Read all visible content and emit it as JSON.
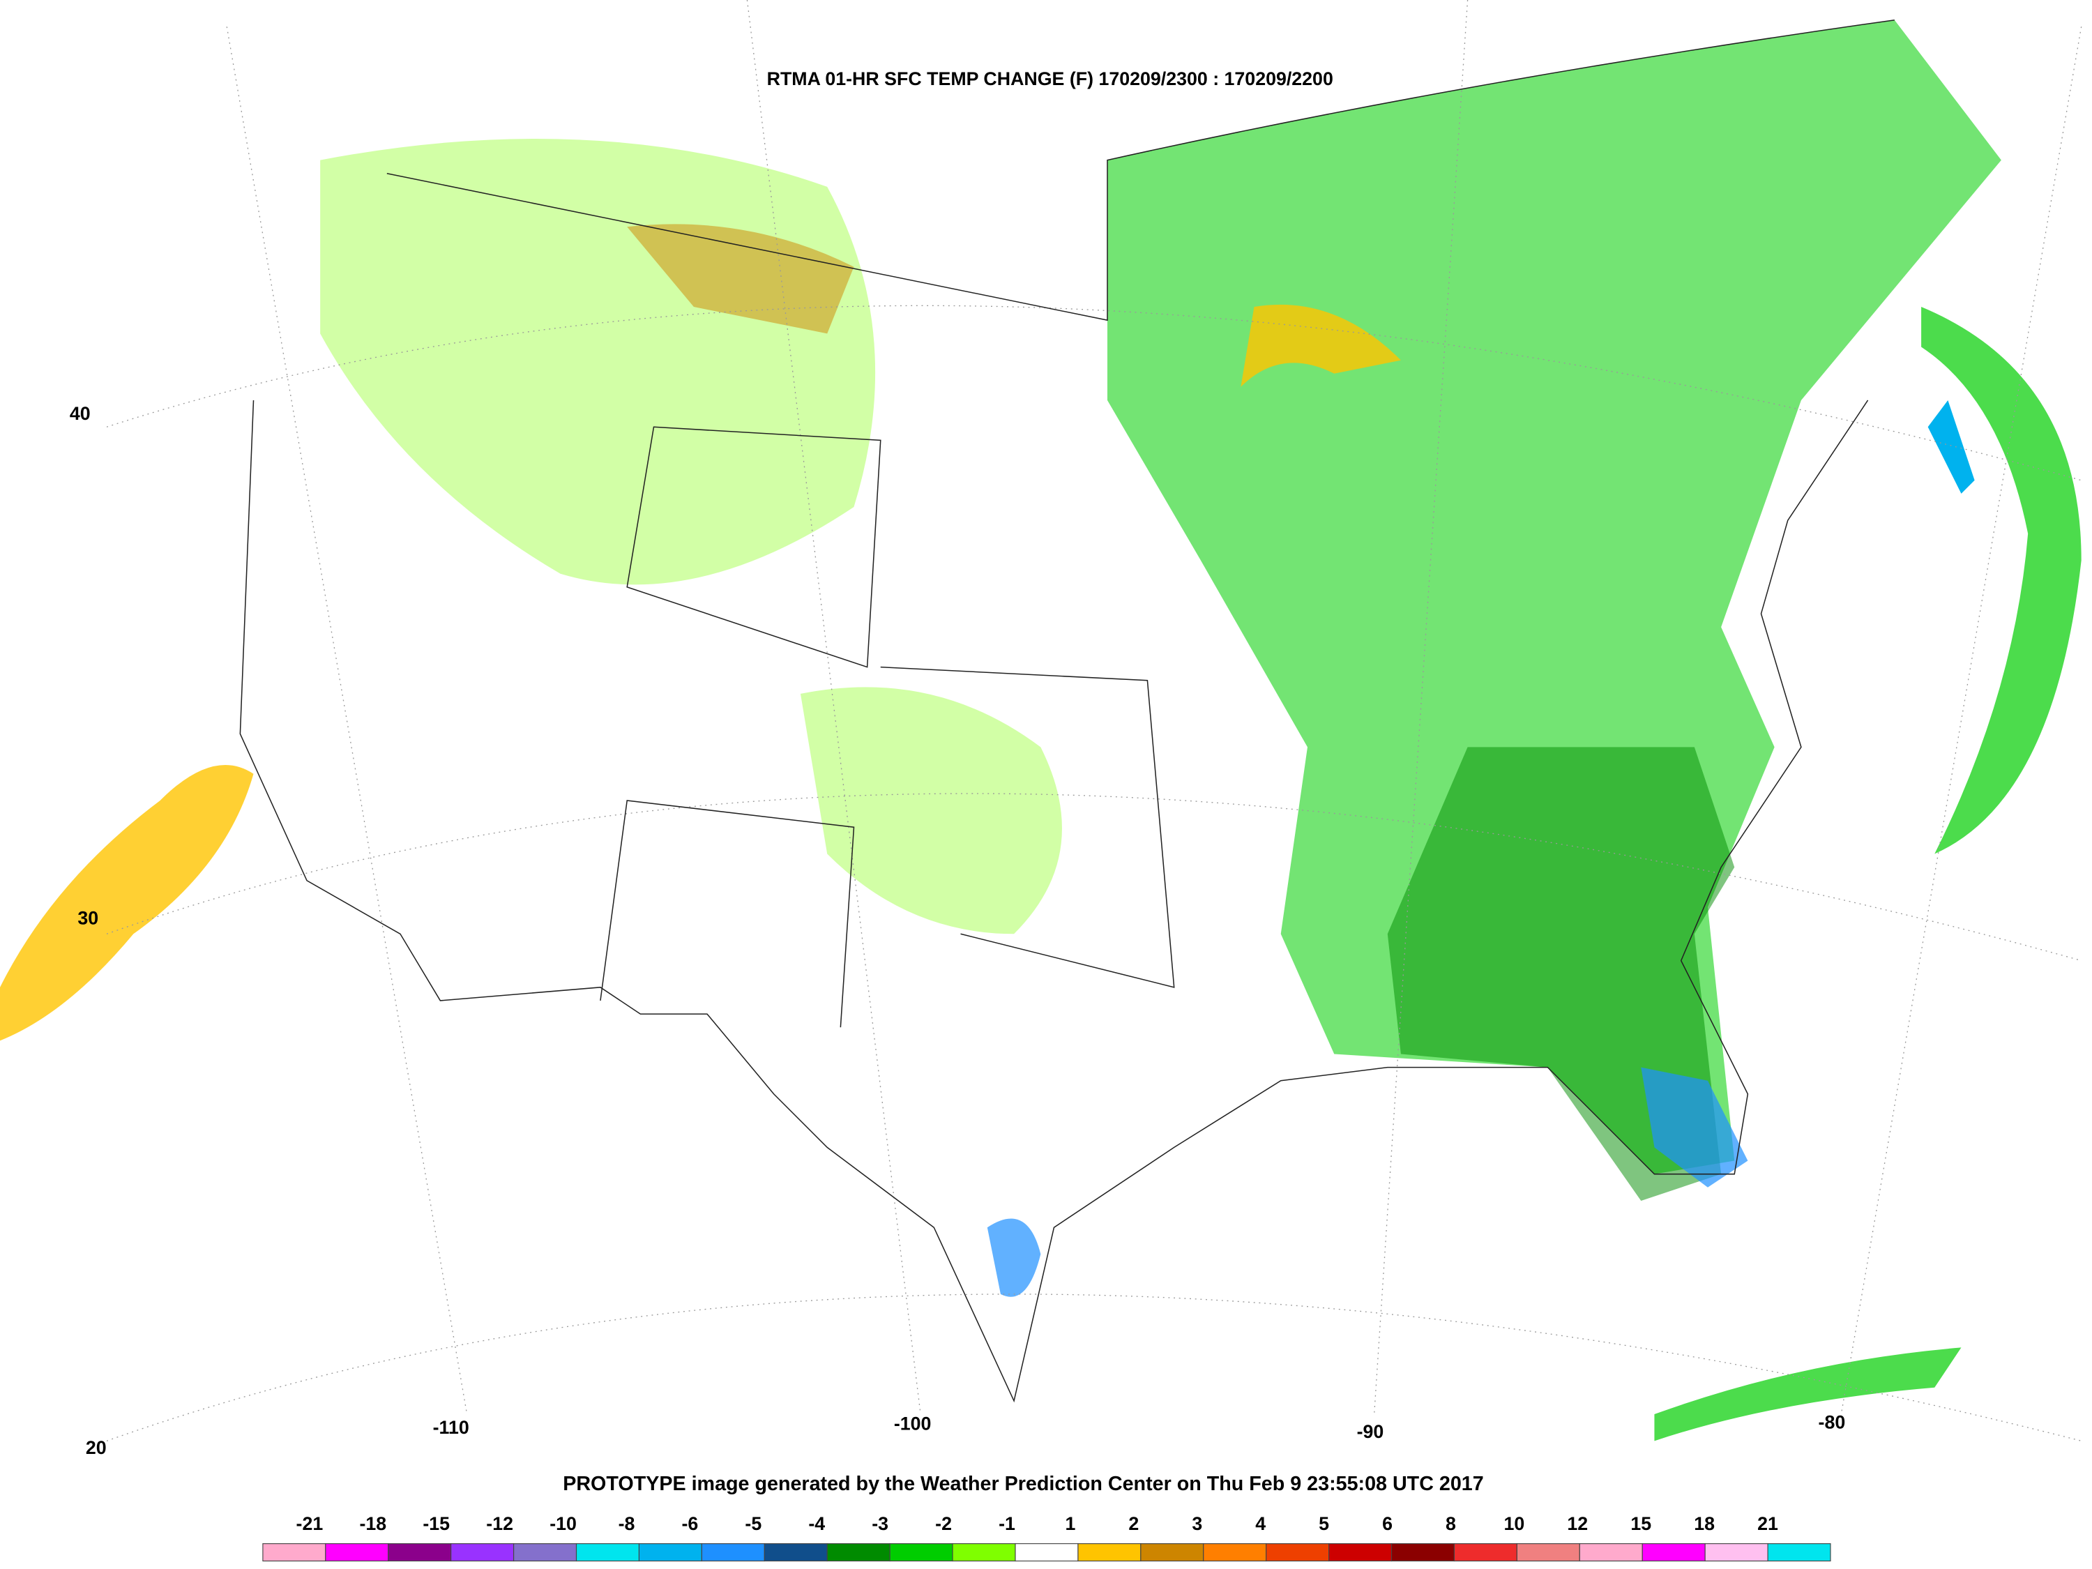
{
  "title": "RTMA 01-HR SFC TEMP CHANGE (F) 170209/2300 : 170209/2200",
  "footer": "PROTOTYPE image generated by the Weather Prediction Center on Thu Feb 9 23:55:08 UTC 2017",
  "grid_labels": {
    "latitude": [
      "40",
      "30",
      "20"
    ],
    "longitude": [
      "-110",
      "-100",
      "-90",
      "-80"
    ]
  },
  "colorbar": {
    "labels": [
      "-21",
      "-18",
      "-15",
      "-12",
      "-10",
      "-8",
      "-6",
      "-5",
      "-4",
      "-3",
      "-2",
      "-1",
      "1",
      "2",
      "3",
      "4",
      "5",
      "6",
      "8",
      "10",
      "12",
      "15",
      "18",
      "21"
    ],
    "colors": [
      "#ffaacc",
      "#ff00ff",
      "#8b008b",
      "#9932ff",
      "#8470cc",
      "#00e5ee",
      "#00b2ee",
      "#1e90ff",
      "#104e8b",
      "#008b00",
      "#00cd00",
      "#7fff00",
      "#ffffff",
      "#ffc400",
      "#cd8500",
      "#ff7f00",
      "#ee4000",
      "#cd0000",
      "#8b0000",
      "#ee2c2c",
      "#f08080",
      "#ffaacc",
      "#ff00ff",
      "#ffc0f0",
      "#00e5ee"
    ]
  }
}
